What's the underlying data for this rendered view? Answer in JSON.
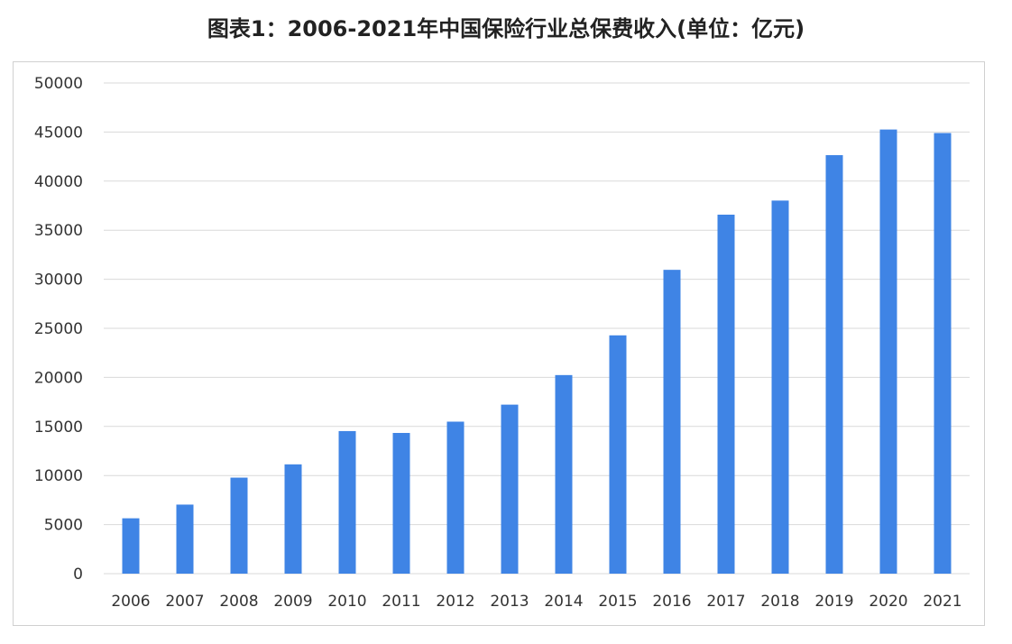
{
  "chart_data": {
    "type": "bar",
    "title": "图表1：2006-2021年中国保险行业总保费收入(单位：亿元)",
    "categories": [
      "2006",
      "2007",
      "2008",
      "2009",
      "2010",
      "2011",
      "2012",
      "2013",
      "2014",
      "2015",
      "2016",
      "2017",
      "2018",
      "2019",
      "2020",
      "2021"
    ],
    "values": [
      5641,
      7036,
      9784,
      11137,
      14528,
      14339,
      15488,
      17222,
      20235,
      24283,
      30959,
      36581,
      38017,
      42645,
      45257,
      44900
    ],
    "xlabel": "",
    "ylabel": "",
    "ylim": [
      0,
      50000
    ],
    "yticks": [
      "0",
      "5000",
      "10000",
      "15000",
      "20000",
      "25000",
      "30000",
      "35000",
      "40000",
      "45000",
      "50000"
    ],
    "grid": true,
    "legend": "none",
    "bar_color": "#3f84e5"
  }
}
